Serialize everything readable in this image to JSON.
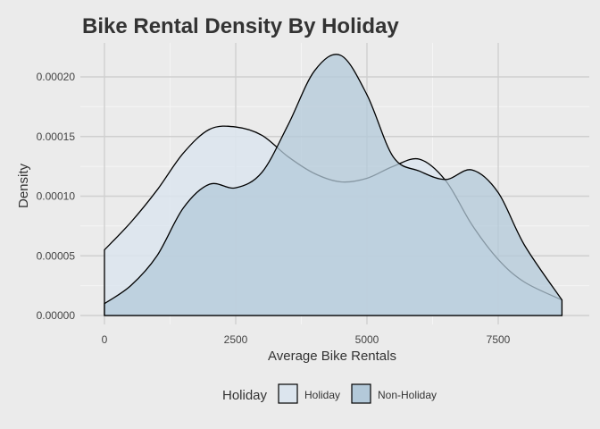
{
  "chart_data": {
    "type": "area",
    "title": "Bike Rental Density By Holiday",
    "xlabel": "Average Bike Rentals",
    "ylabel": "Density",
    "xlim": [
      0,
      8714
    ],
    "ylim": [
      0,
      0.00022
    ],
    "x_ticks": [
      0,
      2500,
      5000,
      7500
    ],
    "x_tick_labels": [
      "0",
      "2500",
      "5000",
      "7500"
    ],
    "y_ticks": [
      0,
      5e-05,
      0.0001,
      0.00015,
      0.0002
    ],
    "y_tick_labels": [
      "0.00000",
      "0.00005",
      "0.00010",
      "0.00015",
      "0.00020"
    ],
    "grid": true,
    "legend_title": "Holiday",
    "legend_position": "bottom",
    "series": [
      {
        "name": "Holiday",
        "color": "#dce5ee",
        "points": [
          [
            0,
            5.5e-05
          ],
          [
            500,
            7.8e-05
          ],
          [
            1000,
            0.000105
          ],
          [
            1500,
            0.000136
          ],
          [
            2000,
            0.000156
          ],
          [
            2500,
            0.000158
          ],
          [
            3000,
            0.000151
          ],
          [
            3500,
            0.000133
          ],
          [
            4000,
            0.000119
          ],
          [
            4500,
            0.000112
          ],
          [
            5000,
            0.000115
          ],
          [
            5500,
            0.000125
          ],
          [
            6000,
            0.000131
          ],
          [
            6500,
            0.000113
          ],
          [
            7000,
            7.6e-05
          ],
          [
            7500,
            4.7e-05
          ],
          [
            8000,
            2.8e-05
          ],
          [
            8714,
            1.3e-05
          ]
        ]
      },
      {
        "name": "Non-Holiday",
        "color": "#b3c9d9",
        "points": [
          [
            0,
            1e-05
          ],
          [
            500,
            2.5e-05
          ],
          [
            1000,
            5e-05
          ],
          [
            1500,
            9e-05
          ],
          [
            2000,
            0.00011
          ],
          [
            2500,
            0.000107
          ],
          [
            3000,
            0.00012
          ],
          [
            3500,
            0.00016
          ],
          [
            4000,
            0.000205
          ],
          [
            4500,
            0.000218
          ],
          [
            5000,
            0.000185
          ],
          [
            5500,
            0.000133
          ],
          [
            6000,
            0.000121
          ],
          [
            6500,
            0.000114
          ],
          [
            7000,
            0.000122
          ],
          [
            7500,
            0.000103
          ],
          [
            8000,
            5.9e-05
          ],
          [
            8714,
            1.3e-05
          ]
        ]
      }
    ]
  }
}
